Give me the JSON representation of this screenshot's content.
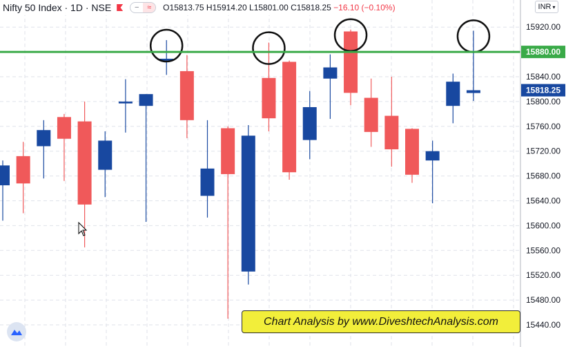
{
  "header": {
    "symbol": "Nifty 50 Index · 1D · NSE",
    "open_label": "O",
    "open": "15813.75",
    "high_label": "H",
    "high": "15914.20",
    "low_label": "L",
    "low": "15801.00",
    "close_label": "C",
    "close": "15818.25",
    "change": "−16.10 (−0.10%)",
    "currency": "INR"
  },
  "watermark": "Chart Analysis by www.DiveshtechAnalysis.com",
  "colors": {
    "up": "#1848a0",
    "down": "#f0595a",
    "resistance": "#3aaa48",
    "grid": "#dfe2ea",
    "price_label": "#1848a0"
  },
  "chart_data": {
    "type": "candlestick",
    "ylim": [
      15430,
      15960
    ],
    "y_ticks": [
      15440,
      15480,
      15520,
      15560,
      15600,
      15640,
      15680,
      15720,
      15760,
      15800,
      15840,
      15920
    ],
    "resistance_line": {
      "value": 15880,
      "label": "15880.00"
    },
    "last_price": {
      "value": 15818.25,
      "label": "15818.25"
    },
    "candles": [
      {
        "o": 15665,
        "h": 15705,
        "l": 15608,
        "c": 15697
      },
      {
        "o": 15712,
        "h": 15735,
        "l": 15620,
        "c": 15668
      },
      {
        "o": 15728,
        "h": 15770,
        "l": 15676,
        "c": 15754
      },
      {
        "o": 15775,
        "h": 15780,
        "l": 15672,
        "c": 15740
      },
      {
        "o": 15768,
        "h": 15800,
        "l": 15565,
        "c": 15634
      },
      {
        "o": 15690,
        "h": 15752,
        "l": 15646,
        "c": 15737
      },
      {
        "o": 15797,
        "h": 15836,
        "l": 15750,
        "c": 15800
      },
      {
        "o": 15793,
        "h": 15812,
        "l": 15606,
        "c": 15812
      },
      {
        "o": 15866,
        "h": 15899,
        "l": 15843,
        "c": 15869
      },
      {
        "o": 15849,
        "h": 15875,
        "l": 15741,
        "c": 15770
      },
      {
        "o": 15648,
        "h": 15770,
        "l": 15613,
        "c": 15692
      },
      {
        "o": 15757,
        "h": 15760,
        "l": 15450,
        "c": 15683
      },
      {
        "o": 15526,
        "h": 15762,
        "l": 15505,
        "c": 15745
      },
      {
        "o": 15838,
        "h": 15895,
        "l": 15752,
        "c": 15773
      },
      {
        "o": 15864,
        "h": 15866,
        "l": 15674,
        "c": 15686
      },
      {
        "o": 15738,
        "h": 15817,
        "l": 15707,
        "c": 15791
      },
      {
        "o": 15837,
        "h": 15876,
        "l": 15772,
        "c": 15855
      },
      {
        "o": 15913,
        "h": 15916,
        "l": 15794,
        "c": 15814
      },
      {
        "o": 15806,
        "h": 15837,
        "l": 15727,
        "c": 15751
      },
      {
        "o": 15777,
        "h": 15840,
        "l": 15695,
        "c": 15723
      },
      {
        "o": 15756,
        "h": 15757,
        "l": 15669,
        "c": 15682
      },
      {
        "o": 15705,
        "h": 15737,
        "l": 15636,
        "c": 15720
      },
      {
        "o": 15793,
        "h": 15845,
        "l": 15765,
        "c": 15832
      },
      {
        "o": 15813.75,
        "h": 15914.2,
        "l": 15801,
        "c": 15818.25
      }
    ],
    "highlighted_candles": [
      8,
      13,
      17,
      23
    ]
  }
}
